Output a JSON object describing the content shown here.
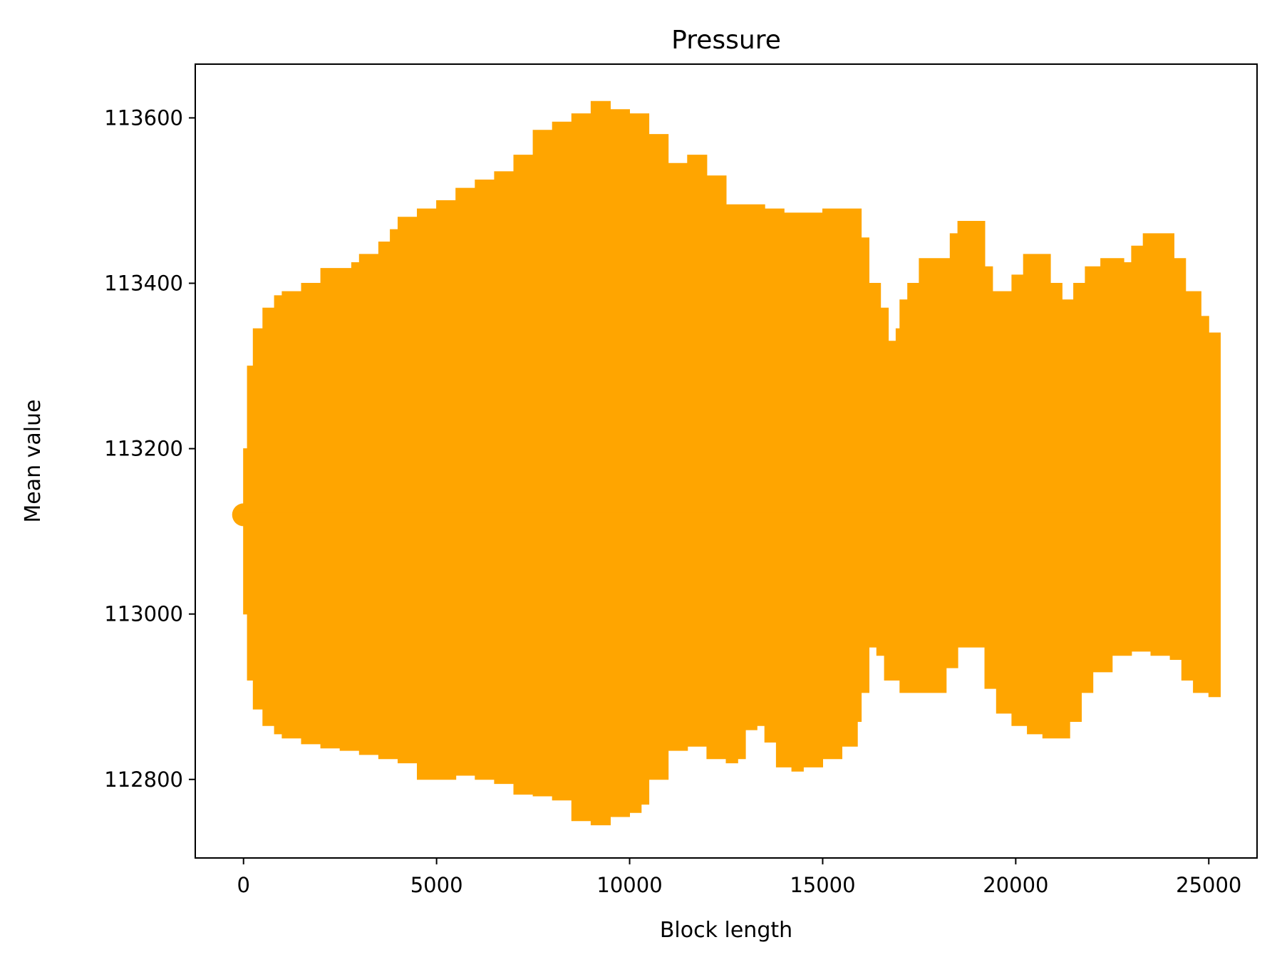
{
  "chart_data": {
    "type": "errorbar",
    "title": "Pressure",
    "xlabel": "Block length",
    "ylabel": "Mean value",
    "xlim": [
      -1250,
      26250
    ],
    "ylim": [
      112705,
      113665
    ],
    "xticks": [
      0,
      5000,
      10000,
      15000,
      20000,
      25000
    ],
    "yticks": [
      112800,
      113000,
      113200,
      113400,
      113600
    ],
    "grid": false,
    "color": "#ffa500",
    "series": [
      {
        "mean": 113120,
        "x_range": [
          0,
          25000
        ],
        "upper_envelope": [
          [
            0,
            113200
          ],
          [
            100,
            113300
          ],
          [
            250,
            113345
          ],
          [
            500,
            113370
          ],
          [
            800,
            113385
          ],
          [
            1000,
            113390
          ],
          [
            1500,
            113400
          ],
          [
            2000,
            113418
          ],
          [
            2500,
            113418
          ],
          [
            2800,
            113425
          ],
          [
            3000,
            113435
          ],
          [
            3500,
            113450
          ],
          [
            3800,
            113465
          ],
          [
            4000,
            113480
          ],
          [
            4500,
            113490
          ],
          [
            5000,
            113500
          ],
          [
            5500,
            113515
          ],
          [
            6000,
            113525
          ],
          [
            6500,
            113535
          ],
          [
            7000,
            113555
          ],
          [
            7500,
            113585
          ],
          [
            8000,
            113595
          ],
          [
            8500,
            113605
          ],
          [
            9000,
            113620
          ],
          [
            9500,
            113610
          ],
          [
            10000,
            113605
          ],
          [
            10500,
            113580
          ],
          [
            11000,
            113545
          ],
          [
            11500,
            113555
          ],
          [
            12000,
            113530
          ],
          [
            12500,
            113495
          ],
          [
            13000,
            113495
          ],
          [
            13500,
            113490
          ],
          [
            14000,
            113485
          ],
          [
            14500,
            113485
          ],
          [
            15000,
            113490
          ],
          [
            15500,
            113490
          ],
          [
            16000,
            113455
          ],
          [
            16200,
            113400
          ],
          [
            16500,
            113370
          ],
          [
            16700,
            113330
          ],
          [
            16900,
            113345
          ],
          [
            17000,
            113380
          ],
          [
            17200,
            113400
          ],
          [
            17500,
            113430
          ],
          [
            18000,
            113430
          ],
          [
            18300,
            113460
          ],
          [
            18500,
            113475
          ],
          [
            19000,
            113475
          ],
          [
            19200,
            113420
          ],
          [
            19400,
            113390
          ],
          [
            19700,
            113390
          ],
          [
            19900,
            113410
          ],
          [
            20200,
            113435
          ],
          [
            20600,
            113435
          ],
          [
            20900,
            113400
          ],
          [
            21200,
            113380
          ],
          [
            21500,
            113400
          ],
          [
            21800,
            113420
          ],
          [
            22200,
            113430
          ],
          [
            22800,
            113425
          ],
          [
            23000,
            113445
          ],
          [
            23300,
            113460
          ],
          [
            23800,
            113460
          ],
          [
            24100,
            113430
          ],
          [
            24400,
            113390
          ],
          [
            24800,
            113360
          ],
          [
            25000,
            113340
          ],
          [
            25300,
            113330
          ]
        ],
        "lower_envelope": [
          [
            0,
            113000
          ],
          [
            100,
            112920
          ],
          [
            250,
            112885
          ],
          [
            500,
            112865
          ],
          [
            800,
            112855
          ],
          [
            1000,
            112850
          ],
          [
            1500,
            112843
          ],
          [
            2000,
            112838
          ],
          [
            2500,
            112835
          ],
          [
            3000,
            112830
          ],
          [
            3500,
            112825
          ],
          [
            4000,
            112820
          ],
          [
            4500,
            112800
          ],
          [
            5000,
            112800
          ],
          [
            5500,
            112805
          ],
          [
            6000,
            112800
          ],
          [
            6500,
            112795
          ],
          [
            7000,
            112782
          ],
          [
            7500,
            112780
          ],
          [
            8000,
            112775
          ],
          [
            8500,
            112750
          ],
          [
            9000,
            112745
          ],
          [
            9500,
            112755
          ],
          [
            10000,
            112760
          ],
          [
            10300,
            112770
          ],
          [
            10500,
            112800
          ],
          [
            11000,
            112835
          ],
          [
            11500,
            112840
          ],
          [
            12000,
            112825
          ],
          [
            12500,
            112820
          ],
          [
            12800,
            112825
          ],
          [
            13000,
            112860
          ],
          [
            13300,
            112865
          ],
          [
            13500,
            112845
          ],
          [
            13800,
            112815
          ],
          [
            14200,
            112810
          ],
          [
            14500,
            112815
          ],
          [
            15000,
            112825
          ],
          [
            15500,
            112840
          ],
          [
            15900,
            112870
          ],
          [
            16000,
            112905
          ],
          [
            16200,
            112960
          ],
          [
            16400,
            112950
          ],
          [
            16600,
            112920
          ],
          [
            17000,
            112905
          ],
          [
            17500,
            112905
          ],
          [
            18000,
            112905
          ],
          [
            18200,
            112935
          ],
          [
            18500,
            112960
          ],
          [
            19000,
            112960
          ],
          [
            19200,
            112910
          ],
          [
            19500,
            112880
          ],
          [
            19900,
            112865
          ],
          [
            20300,
            112855
          ],
          [
            20700,
            112850
          ],
          [
            21100,
            112850
          ],
          [
            21400,
            112870
          ],
          [
            21700,
            112905
          ],
          [
            22000,
            112930
          ],
          [
            22500,
            112950
          ],
          [
            23000,
            112955
          ],
          [
            23500,
            112950
          ],
          [
            24000,
            112945
          ],
          [
            24300,
            112920
          ],
          [
            24600,
            112905
          ],
          [
            25000,
            112900
          ],
          [
            25300,
            112910
          ]
        ]
      }
    ]
  }
}
